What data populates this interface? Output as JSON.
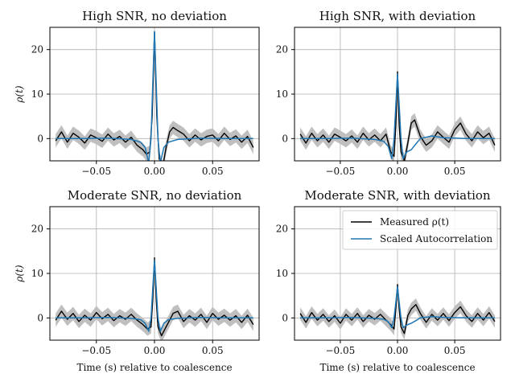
{
  "chart_data": {
    "type": "line",
    "xlabel": "Time (s) relative to coalescence",
    "ylabel": "ρ(t)",
    "xlim": [
      -0.09,
      0.09
    ],
    "ylim": [
      -5,
      25
    ],
    "xticks": [
      -0.05,
      0.0,
      0.05
    ],
    "xtick_labels": [
      "−0.05",
      "0.00",
      "0.05"
    ],
    "yticks": [
      0,
      10,
      20
    ],
    "ytick_labels": [
      "0",
      "10",
      "20"
    ],
    "grid": true,
    "legend": {
      "location": "upper-right-of-panel-4",
      "entries": [
        {
          "label": "Measured ρ(t)",
          "color": "#000000"
        },
        {
          "label": "Scaled Autocorrelation",
          "color": "#1f77b4"
        }
      ]
    },
    "colors": {
      "measured": "#000000",
      "autocorrelation": "#1f77b4",
      "band": "#bfbfbf"
    },
    "panels": [
      {
        "title": "High SNR, no deviation",
        "measured": {
          "x": [
            -0.085,
            -0.08,
            -0.075,
            -0.07,
            -0.065,
            -0.06,
            -0.055,
            -0.05,
            -0.045,
            -0.04,
            -0.035,
            -0.03,
            -0.025,
            -0.02,
            -0.015,
            -0.01,
            -0.007,
            -0.004,
            -0.002,
            0.0,
            0.002,
            0.004,
            0.007,
            0.01,
            0.013,
            0.016,
            0.02,
            0.025,
            0.03,
            0.035,
            0.04,
            0.045,
            0.05,
            0.055,
            0.06,
            0.065,
            0.07,
            0.075,
            0.08,
            0.085
          ],
          "y": [
            -0.5,
            1.5,
            -0.8,
            1.2,
            0.3,
            -1.0,
            0.8,
            0.2,
            -0.6,
            1.0,
            -0.3,
            0.5,
            -0.8,
            0.3,
            -1.5,
            -2.5,
            -3.5,
            -3.0,
            5.0,
            24.0,
            5.0,
            -4.5,
            -6.5,
            -2.0,
            1.5,
            2.5,
            1.8,
            1.0,
            -0.5,
            0.8,
            -0.3,
            0.5,
            0.8,
            -0.5,
            1.2,
            -0.2,
            0.6,
            -0.8,
            0.5,
            -2.0
          ]
        },
        "autocorrelation": {
          "x": [
            -0.085,
            -0.06,
            -0.04,
            -0.02,
            -0.012,
            -0.008,
            -0.005,
            -0.003,
            -0.0015,
            0.0,
            0.0015,
            0.003,
            0.005,
            0.008,
            0.012,
            0.02,
            0.04,
            0.06,
            0.085
          ],
          "y": [
            0.0,
            0.0,
            0.1,
            -0.2,
            -0.8,
            -2.0,
            -5.5,
            0.0,
            12.0,
            24.0,
            12.0,
            0.0,
            -5.5,
            -2.0,
            -0.8,
            -0.2,
            0.1,
            0.0,
            0.0
          ]
        },
        "band_halfwidth": 1.5
      },
      {
        "title": "High SNR, with deviation",
        "measured": {
          "x": [
            -0.085,
            -0.08,
            -0.075,
            -0.07,
            -0.065,
            -0.06,
            -0.055,
            -0.05,
            -0.045,
            -0.04,
            -0.035,
            -0.03,
            -0.025,
            -0.02,
            -0.015,
            -0.01,
            -0.006,
            -0.003,
            -0.0015,
            0.0,
            0.0015,
            0.003,
            0.006,
            0.009,
            0.012,
            0.015,
            0.02,
            0.025,
            0.03,
            0.035,
            0.04,
            0.045,
            0.05,
            0.055,
            0.06,
            0.065,
            0.07,
            0.075,
            0.08,
            0.085
          ],
          "y": [
            1.0,
            -1.0,
            1.2,
            -0.5,
            0.8,
            -0.8,
            1.0,
            0.3,
            -0.5,
            0.6,
            -0.8,
            1.2,
            -0.3,
            0.8,
            -0.5,
            1.0,
            -3.0,
            -4.0,
            3.0,
            15.0,
            3.0,
            -3.0,
            -5.0,
            -1.0,
            3.5,
            4.2,
            0.5,
            -1.5,
            -0.5,
            1.5,
            0.3,
            -0.8,
            2.0,
            3.5,
            1.0,
            -0.5,
            1.5,
            0.2,
            1.2,
            -1.5
          ]
        },
        "autocorrelation": {
          "x": [
            -0.085,
            -0.06,
            -0.04,
            -0.02,
            -0.012,
            -0.008,
            -0.005,
            -0.003,
            -0.0015,
            0.0,
            0.0015,
            0.003,
            0.005,
            0.008,
            0.012,
            0.016,
            0.02,
            0.03,
            0.04,
            0.06,
            0.085
          ],
          "y": [
            0.0,
            0.0,
            0.1,
            -0.2,
            -0.6,
            -1.8,
            -4.5,
            0.0,
            7.5,
            14.5,
            7.5,
            0.0,
            -4.5,
            -3.0,
            -2.5,
            -1.2,
            0.0,
            0.6,
            0.2,
            0.0,
            0.0
          ]
        },
        "band_halfwidth": 1.5
      },
      {
        "title": "Moderate SNR, no deviation",
        "measured": {
          "x": [
            -0.085,
            -0.08,
            -0.075,
            -0.07,
            -0.065,
            -0.06,
            -0.055,
            -0.05,
            -0.045,
            -0.04,
            -0.035,
            -0.03,
            -0.025,
            -0.02,
            -0.015,
            -0.01,
            -0.006,
            -0.003,
            -0.0015,
            0.0,
            0.0015,
            0.003,
            0.006,
            0.009,
            0.012,
            0.016,
            0.02,
            0.025,
            0.03,
            0.035,
            0.04,
            0.045,
            0.05,
            0.055,
            0.06,
            0.065,
            0.07,
            0.075,
            0.08,
            0.085
          ],
          "y": [
            -0.5,
            1.5,
            -0.3,
            1.0,
            -0.8,
            0.6,
            -0.5,
            1.2,
            -0.2,
            0.8,
            -0.6,
            0.5,
            -0.3,
            0.8,
            -0.5,
            -1.5,
            -2.5,
            -2.0,
            4.0,
            13.5,
            4.0,
            -2.0,
            -4.0,
            -2.5,
            -1.0,
            1.0,
            1.5,
            -0.8,
            0.5,
            -0.5,
            0.8,
            -1.0,
            1.0,
            -0.3,
            0.6,
            -0.5,
            0.5,
            -1.0,
            0.6,
            -1.5
          ]
        },
        "autocorrelation": {
          "x": [
            -0.085,
            -0.06,
            -0.04,
            -0.02,
            -0.012,
            -0.008,
            -0.005,
            -0.003,
            -0.0015,
            0.0,
            0.0015,
            0.003,
            0.005,
            0.008,
            0.012,
            0.02,
            0.04,
            0.06,
            0.085
          ],
          "y": [
            0.0,
            0.0,
            0.1,
            -0.1,
            -0.4,
            -1.2,
            -3.0,
            0.0,
            6.5,
            13.0,
            6.5,
            0.0,
            -3.0,
            -1.2,
            -0.4,
            -0.1,
            0.1,
            0.0,
            0.0
          ]
        },
        "band_halfwidth": 1.5
      },
      {
        "title": "Moderate SNR, with deviation",
        "measured": {
          "x": [
            -0.085,
            -0.08,
            -0.075,
            -0.07,
            -0.065,
            -0.06,
            -0.055,
            -0.05,
            -0.045,
            -0.04,
            -0.035,
            -0.03,
            -0.025,
            -0.02,
            -0.015,
            -0.01,
            -0.006,
            -0.003,
            -0.0015,
            0.0,
            0.0015,
            0.003,
            0.006,
            0.009,
            0.012,
            0.016,
            0.02,
            0.025,
            0.03,
            0.035,
            0.04,
            0.045,
            0.05,
            0.055,
            0.06,
            0.065,
            0.07,
            0.075,
            0.08,
            0.085
          ],
          "y": [
            1.0,
            -1.0,
            1.2,
            -0.5,
            0.8,
            -0.8,
            0.5,
            -1.2,
            0.8,
            -0.5,
            1.0,
            -0.8,
            0.6,
            -0.3,
            0.8,
            -0.5,
            -1.5,
            -2.5,
            2.0,
            7.5,
            2.0,
            -2.0,
            -3.5,
            0.5,
            2.0,
            3.0,
            1.0,
            -1.0,
            0.8,
            -0.5,
            1.0,
            -0.6,
            1.2,
            2.5,
            0.5,
            -0.8,
            1.0,
            -0.5,
            1.2,
            -0.8
          ]
        },
        "autocorrelation": {
          "x": [
            -0.085,
            -0.06,
            -0.04,
            -0.02,
            -0.012,
            -0.008,
            -0.005,
            -0.003,
            -0.0015,
            0.0,
            0.0015,
            0.003,
            0.005,
            0.008,
            0.012,
            0.016,
            0.02,
            0.03,
            0.04,
            0.06,
            0.085
          ],
          "y": [
            0.0,
            0.0,
            0.1,
            -0.1,
            -0.3,
            -0.9,
            -2.2,
            0.0,
            3.5,
            7.0,
            3.5,
            0.0,
            -2.2,
            -1.6,
            -1.2,
            -0.6,
            0.0,
            0.3,
            0.1,
            0.0,
            0.0
          ]
        },
        "band_halfwidth": 1.4
      }
    ]
  }
}
